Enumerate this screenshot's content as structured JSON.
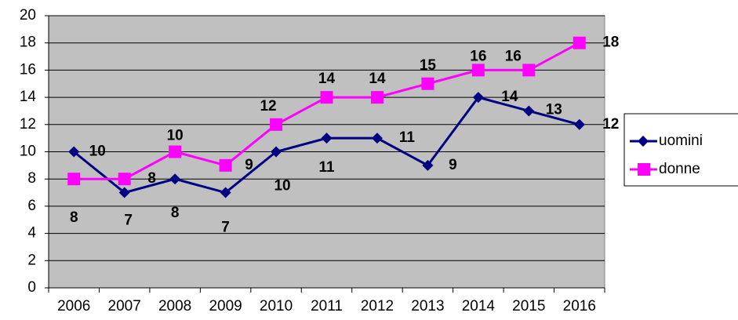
{
  "chart_data": {
    "type": "line",
    "categories": [
      "2006",
      "2007",
      "2008",
      "2009",
      "2010",
      "2011",
      "2012",
      "2013",
      "2014",
      "2015",
      "2016"
    ],
    "series": [
      {
        "name": "uomini",
        "color": "#000080",
        "marker": "diamond",
        "values": [
          10,
          7,
          8,
          7,
          10,
          11,
          11,
          9,
          14,
          13,
          12
        ]
      },
      {
        "name": "donne",
        "color": "#ff00ff",
        "marker": "square",
        "values": [
          8,
          8,
          10,
          9,
          12,
          14,
          14,
          15,
          16,
          16,
          18
        ]
      }
    ],
    "ylim": [
      0,
      20
    ],
    "yticks": [
      0,
      2,
      4,
      6,
      8,
      10,
      12,
      14,
      16,
      18,
      20
    ],
    "grid": true,
    "legend": "right"
  }
}
